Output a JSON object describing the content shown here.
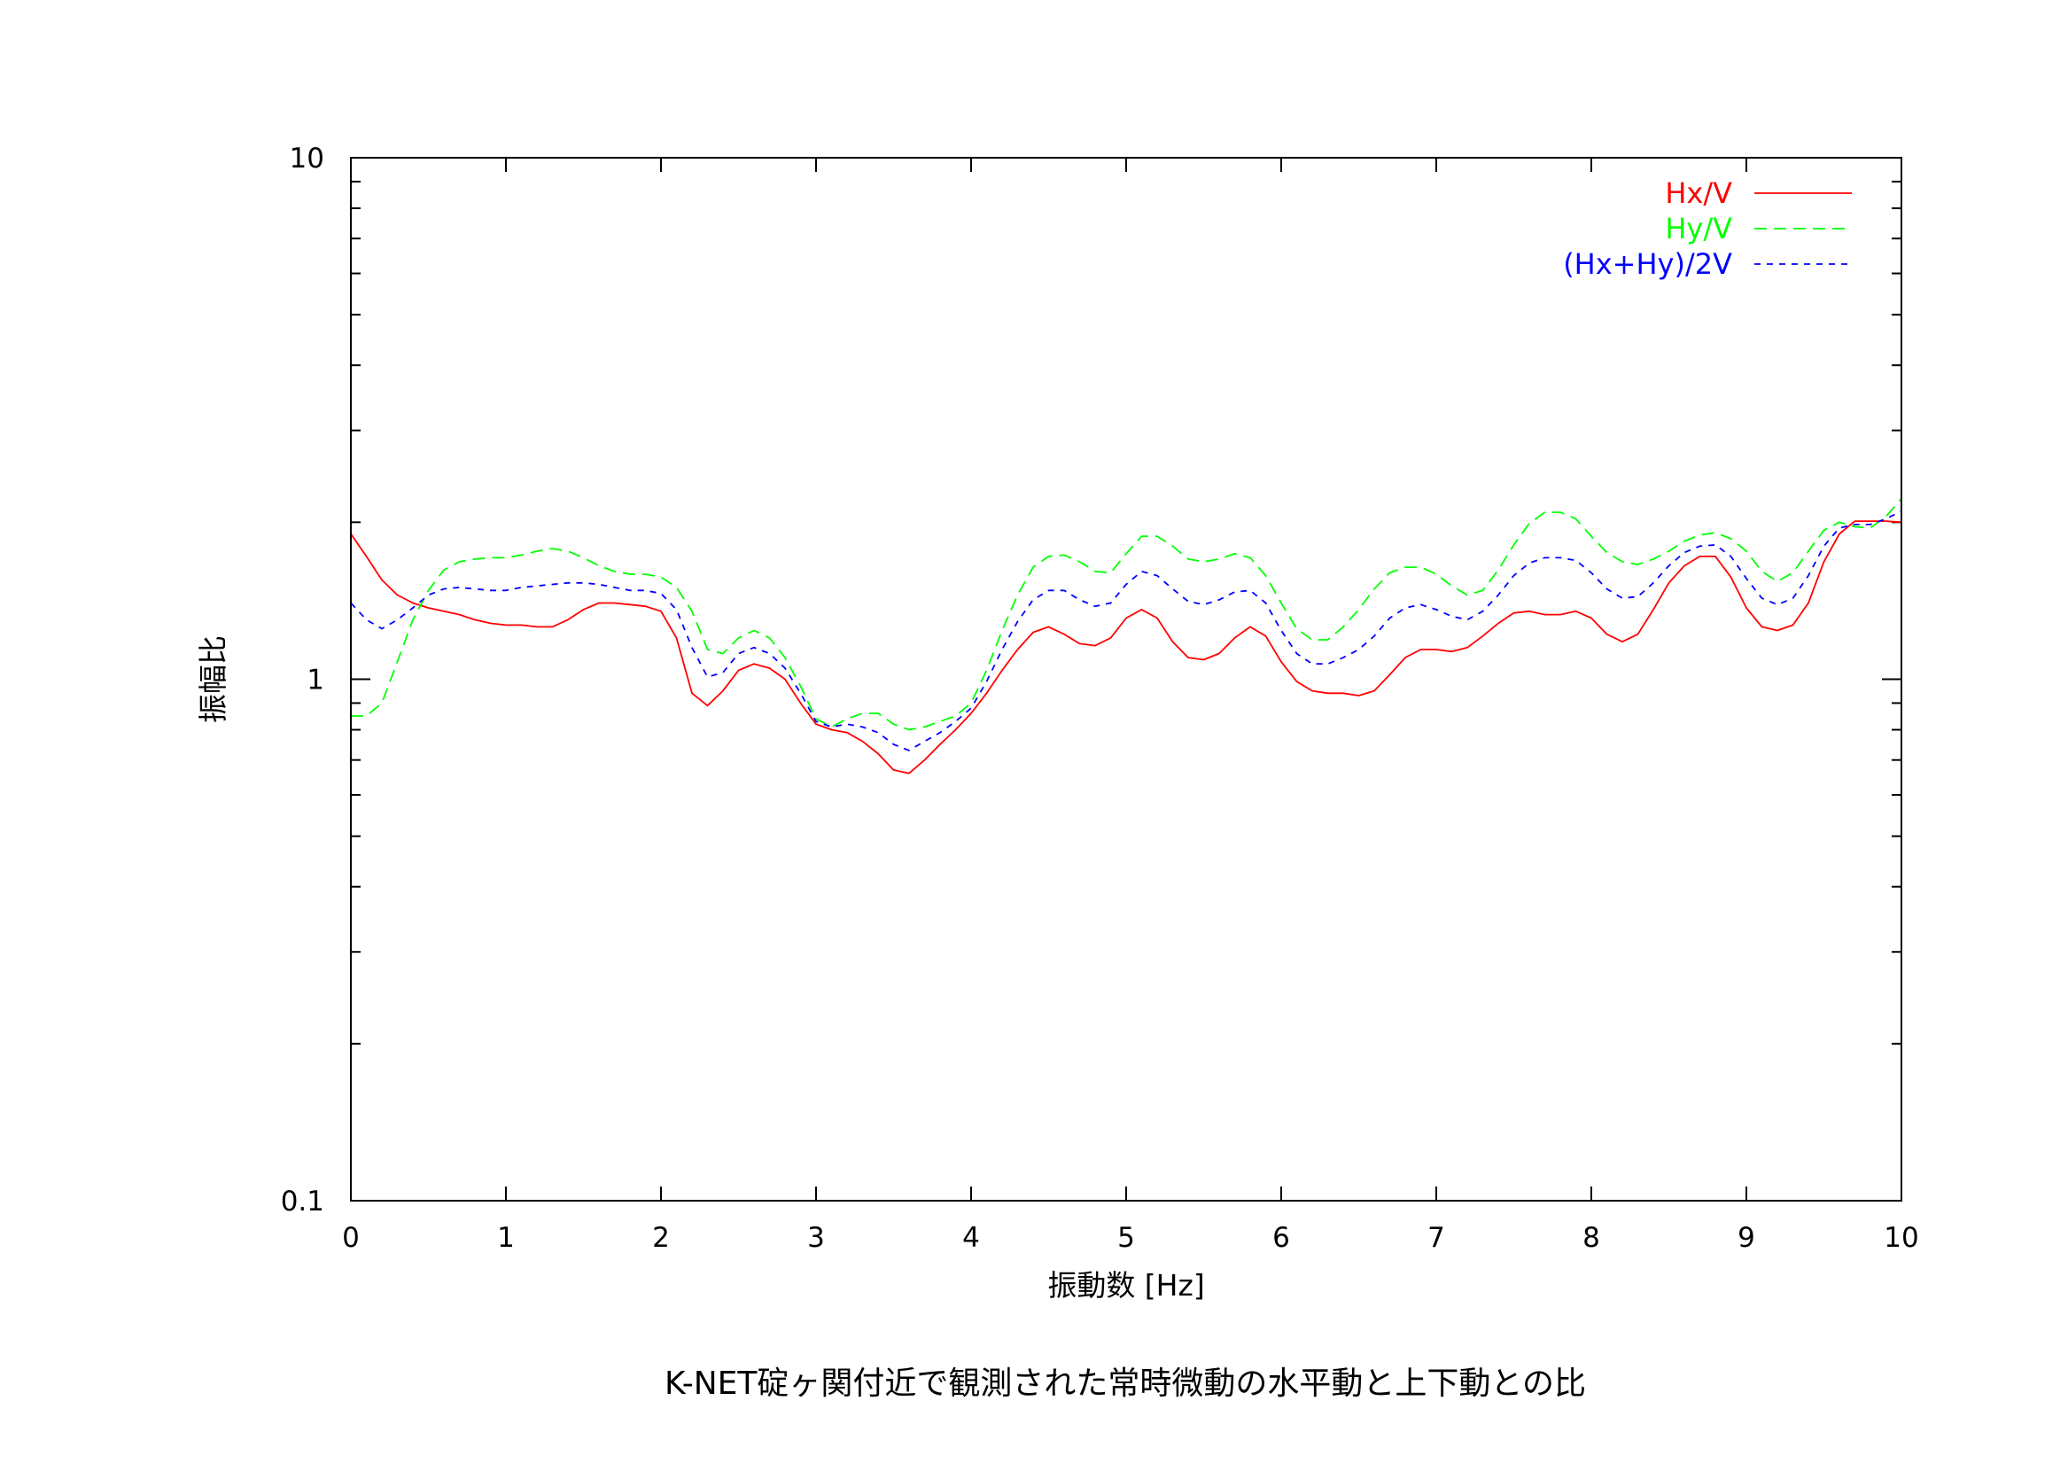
{
  "caption": "K-NET碇ヶ関付近で観測された常時微動の水平動と上下動との比",
  "chart_data": {
    "type": "line",
    "title": "",
    "xlabel": "振動数 [Hz]",
    "ylabel": "振幅比",
    "xlim": [
      0,
      10
    ],
    "ylim": [
      0.1,
      10
    ],
    "yscale": "log",
    "grid": false,
    "legend_position": "top-right",
    "x_ticks": [
      "0",
      "1",
      "2",
      "3",
      "4",
      "5",
      "6",
      "7",
      "8",
      "9",
      "10"
    ],
    "y_ticks": [
      "0.1",
      "1",
      "10"
    ],
    "x": [
      0,
      0.1,
      0.2,
      0.3,
      0.4,
      0.5,
      0.6,
      0.7,
      0.8,
      0.9,
      1.0,
      1.1,
      1.2,
      1.3,
      1.4,
      1.5,
      1.6,
      1.7,
      1.8,
      1.9,
      2.0,
      2.1,
      2.2,
      2.3,
      2.4,
      2.5,
      2.6,
      2.7,
      2.8,
      2.9,
      3.0,
      3.1,
      3.2,
      3.3,
      3.4,
      3.5,
      3.6,
      3.7,
      3.8,
      3.9,
      4.0,
      4.1,
      4.2,
      4.3,
      4.4,
      4.5,
      4.6,
      4.7,
      4.8,
      4.9,
      5.0,
      5.1,
      5.2,
      5.3,
      5.4,
      5.5,
      5.6,
      5.7,
      5.8,
      5.9,
      6.0,
      6.1,
      6.2,
      6.3,
      6.4,
      6.5,
      6.6,
      6.7,
      6.8,
      6.9,
      7.0,
      7.1,
      7.2,
      7.3,
      7.4,
      7.5,
      7.6,
      7.7,
      7.8,
      7.9,
      8.0,
      8.1,
      8.2,
      8.3,
      8.4,
      8.5,
      8.6,
      8.7,
      8.8,
      8.9,
      9.0,
      9.1,
      9.2,
      9.3,
      9.4,
      9.5,
      9.6,
      9.7,
      9.8,
      9.9,
      10.0
    ],
    "series": [
      {
        "name": "Hx/V",
        "color": "#ff0000",
        "dash": "solid",
        "values": [
          1.9,
          1.72,
          1.55,
          1.45,
          1.4,
          1.37,
          1.35,
          1.33,
          1.3,
          1.28,
          1.27,
          1.27,
          1.26,
          1.26,
          1.3,
          1.36,
          1.4,
          1.4,
          1.39,
          1.38,
          1.35,
          1.2,
          0.94,
          0.89,
          0.95,
          1.04,
          1.07,
          1.05,
          1.0,
          0.9,
          0.82,
          0.8,
          0.79,
          0.76,
          0.72,
          0.67,
          0.66,
          0.7,
          0.75,
          0.8,
          0.86,
          0.94,
          1.04,
          1.14,
          1.23,
          1.26,
          1.22,
          1.17,
          1.16,
          1.2,
          1.31,
          1.36,
          1.31,
          1.18,
          1.1,
          1.09,
          1.12,
          1.2,
          1.26,
          1.21,
          1.08,
          0.99,
          0.95,
          0.94,
          0.94,
          0.93,
          0.95,
          1.02,
          1.1,
          1.14,
          1.14,
          1.13,
          1.15,
          1.21,
          1.28,
          1.34,
          1.35,
          1.33,
          1.33,
          1.35,
          1.31,
          1.22,
          1.18,
          1.22,
          1.36,
          1.53,
          1.65,
          1.72,
          1.72,
          1.57,
          1.37,
          1.26,
          1.24,
          1.27,
          1.4,
          1.68,
          1.9,
          2.01,
          2.01,
          2.01,
          2.0
        ]
      },
      {
        "name": "Hy/V",
        "color": "#00ff00",
        "dash": "dashed",
        "values": [
          0.85,
          0.85,
          0.9,
          1.08,
          1.3,
          1.48,
          1.62,
          1.68,
          1.7,
          1.71,
          1.71,
          1.73,
          1.76,
          1.78,
          1.76,
          1.71,
          1.65,
          1.61,
          1.59,
          1.59,
          1.57,
          1.5,
          1.35,
          1.14,
          1.12,
          1.2,
          1.24,
          1.2,
          1.1,
          0.97,
          0.84,
          0.81,
          0.84,
          0.86,
          0.86,
          0.82,
          0.8,
          0.81,
          0.83,
          0.85,
          0.9,
          1.04,
          1.24,
          1.45,
          1.64,
          1.72,
          1.73,
          1.68,
          1.61,
          1.6,
          1.74,
          1.88,
          1.88,
          1.8,
          1.7,
          1.68,
          1.7,
          1.74,
          1.71,
          1.58,
          1.4,
          1.25,
          1.19,
          1.19,
          1.26,
          1.36,
          1.49,
          1.6,
          1.64,
          1.64,
          1.59,
          1.51,
          1.45,
          1.48,
          1.62,
          1.81,
          1.99,
          2.09,
          2.09,
          2.03,
          1.88,
          1.75,
          1.68,
          1.66,
          1.7,
          1.76,
          1.84,
          1.89,
          1.91,
          1.86,
          1.76,
          1.61,
          1.54,
          1.6,
          1.76,
          1.93,
          2.0,
          1.96,
          1.95,
          2.05,
          2.22
        ]
      },
      {
        "name": "(Hx+Hy)/2V",
        "color": "#0000ff",
        "dash": "dotted",
        "values": [
          1.4,
          1.3,
          1.25,
          1.3,
          1.37,
          1.45,
          1.49,
          1.5,
          1.49,
          1.48,
          1.48,
          1.5,
          1.51,
          1.52,
          1.53,
          1.53,
          1.52,
          1.5,
          1.48,
          1.48,
          1.46,
          1.36,
          1.15,
          1.01,
          1.03,
          1.12,
          1.15,
          1.12,
          1.05,
          0.94,
          0.83,
          0.81,
          0.82,
          0.81,
          0.79,
          0.75,
          0.73,
          0.76,
          0.79,
          0.83,
          0.88,
          0.99,
          1.14,
          1.29,
          1.42,
          1.48,
          1.48,
          1.42,
          1.38,
          1.4,
          1.52,
          1.61,
          1.58,
          1.49,
          1.41,
          1.39,
          1.42,
          1.47,
          1.48,
          1.4,
          1.24,
          1.12,
          1.07,
          1.07,
          1.1,
          1.14,
          1.21,
          1.31,
          1.37,
          1.39,
          1.36,
          1.32,
          1.3,
          1.35,
          1.45,
          1.58,
          1.67,
          1.71,
          1.71,
          1.69,
          1.6,
          1.49,
          1.43,
          1.44,
          1.53,
          1.65,
          1.75,
          1.8,
          1.81,
          1.72,
          1.56,
          1.43,
          1.39,
          1.43,
          1.58,
          1.8,
          1.95,
          1.98,
          1.98,
          2.03,
          2.1
        ]
      }
    ]
  }
}
